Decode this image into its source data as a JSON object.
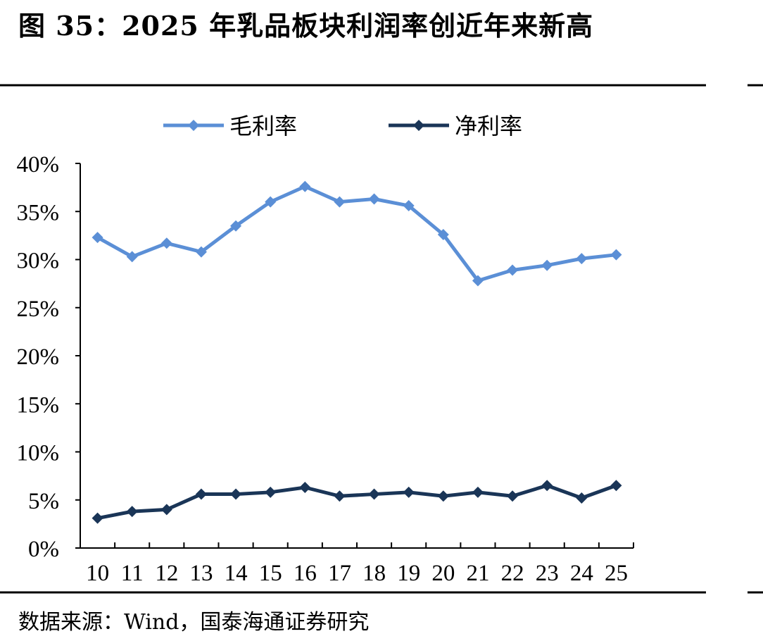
{
  "figure": {
    "title": "图 35：2025 年乳品板块利润率创近年来新高",
    "source": "数据来源：Wind，国泰海通证券研究"
  },
  "chart_data": {
    "type": "line",
    "x": [
      "10",
      "11",
      "12",
      "13",
      "14",
      "15",
      "16",
      "17",
      "18",
      "19",
      "20",
      "21",
      "22",
      "23",
      "24",
      "25"
    ],
    "series": [
      {
        "name": "毛利率",
        "color": "#5B8FD6",
        "values": [
          32.3,
          30.3,
          31.7,
          30.8,
          33.5,
          36.0,
          37.6,
          36.0,
          36.3,
          35.6,
          32.6,
          27.8,
          28.9,
          29.4,
          30.1,
          30.5
        ]
      },
      {
        "name": "净利率",
        "color": "#1A3557",
        "values": [
          3.1,
          3.8,
          4.0,
          5.6,
          5.6,
          5.8,
          6.3,
          5.4,
          5.6,
          5.8,
          5.4,
          5.8,
          5.4,
          6.5,
          5.2,
          6.5
        ]
      }
    ],
    "y_ticks": [
      "0%",
      "5%",
      "10%",
      "15%",
      "20%",
      "25%",
      "30%",
      "35%",
      "40%"
    ],
    "ylim": [
      0,
      40
    ],
    "xlabel": "",
    "ylabel": "",
    "grid": false,
    "legend_position": "top-center",
    "marker": "diamond"
  }
}
